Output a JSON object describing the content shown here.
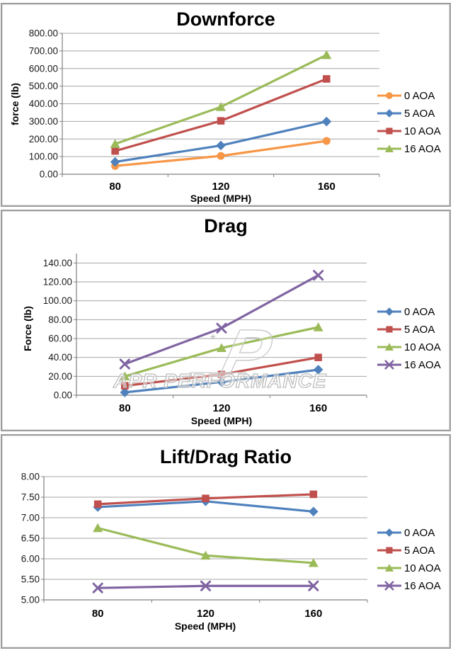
{
  "watermark": {
    "text": "APR PERFORMANCE",
    "logo_letter": "P",
    "star": "*"
  },
  "colors": {
    "gridline": "#A6A6A6",
    "axis": "#808080",
    "tick_text": "#1a1a1a",
    "watermark_stroke": "#bdbdbd",
    "series_blue": "#4F81BD",
    "series_red": "#C0504D",
    "series_green": "#9BBB59",
    "series_purple": "#8064A2",
    "series_orange": "#F79646"
  },
  "chart_data": [
    {
      "type": "line",
      "title": "Downforce",
      "xlabel": "Speed (MPH)",
      "ylabel": "force (lb)",
      "categories": [
        "80",
        "120",
        "160"
      ],
      "axis": {
        "ymin": 0,
        "ymax": 800,
        "ytop": 800,
        "ystep": 100,
        "decimals": 2
      },
      "grid": true,
      "legend_position": "right",
      "watermark": false,
      "series": [
        {
          "name": "0 AOA",
          "marker": "circle",
          "color": "#F79646",
          "values": [
            47,
            104,
            189
          ]
        },
        {
          "name": "5 AOA",
          "marker": "diamond",
          "color": "#4F81BD",
          "values": [
            70,
            163,
            299
          ]
        },
        {
          "name": "10 AOA",
          "marker": "square",
          "color": "#C0504D",
          "values": [
            132,
            303,
            541
          ]
        },
        {
          "name": "16 AOA",
          "marker": "triangle",
          "color": "#9BBB59",
          "values": [
            172,
            382,
            677
          ]
        }
      ]
    },
    {
      "type": "line",
      "title": "Drag",
      "xlabel": "Speed (MPH)",
      "ylabel": "Force (lb)",
      "categories": [
        "80",
        "120",
        "160"
      ],
      "axis": {
        "ymin": 0,
        "ymax": 140,
        "ytop": 150,
        "ystep": 20,
        "decimals": 2
      },
      "grid": true,
      "legend_position": "right",
      "watermark": true,
      "series": [
        {
          "name": "0 AOA",
          "marker": "diamond",
          "color": "#4F81BD",
          "values": [
            3,
            14,
            27
          ]
        },
        {
          "name": "5 AOA",
          "marker": "square",
          "color": "#C0504D",
          "values": [
            10,
            22,
            40
          ]
        },
        {
          "name": "10 AOA",
          "marker": "triangle",
          "color": "#9BBB59",
          "values": [
            20,
            50,
            72
          ]
        },
        {
          "name": "16 AOA",
          "marker": "x",
          "color": "#8064A2",
          "values": [
            33,
            71,
            127
          ]
        }
      ]
    },
    {
      "type": "line",
      "title": "Lift/Drag Ratio",
      "xlabel": "Speed (MPH)",
      "ylabel": "",
      "categories": [
        "80",
        "120",
        "160"
      ],
      "axis": {
        "ymin": 5,
        "ymax": 8,
        "ytop": 8,
        "ystep": 0.5,
        "decimals": 2
      },
      "grid": true,
      "legend_position": "right",
      "watermark": false,
      "series": [
        {
          "name": "0 AOA",
          "marker": "diamond",
          "color": "#4F81BD",
          "values": [
            7.26,
            7.4,
            7.15
          ]
        },
        {
          "name": "5 AOA",
          "marker": "square",
          "color": "#C0504D",
          "values": [
            7.33,
            7.47,
            7.57
          ]
        },
        {
          "name": "10 AOA",
          "marker": "triangle",
          "color": "#9BBB59",
          "values": [
            6.75,
            6.08,
            5.9
          ]
        },
        {
          "name": "16 AOA",
          "marker": "x",
          "color": "#8064A2",
          "values": [
            5.29,
            5.34,
            5.34
          ]
        }
      ]
    }
  ]
}
